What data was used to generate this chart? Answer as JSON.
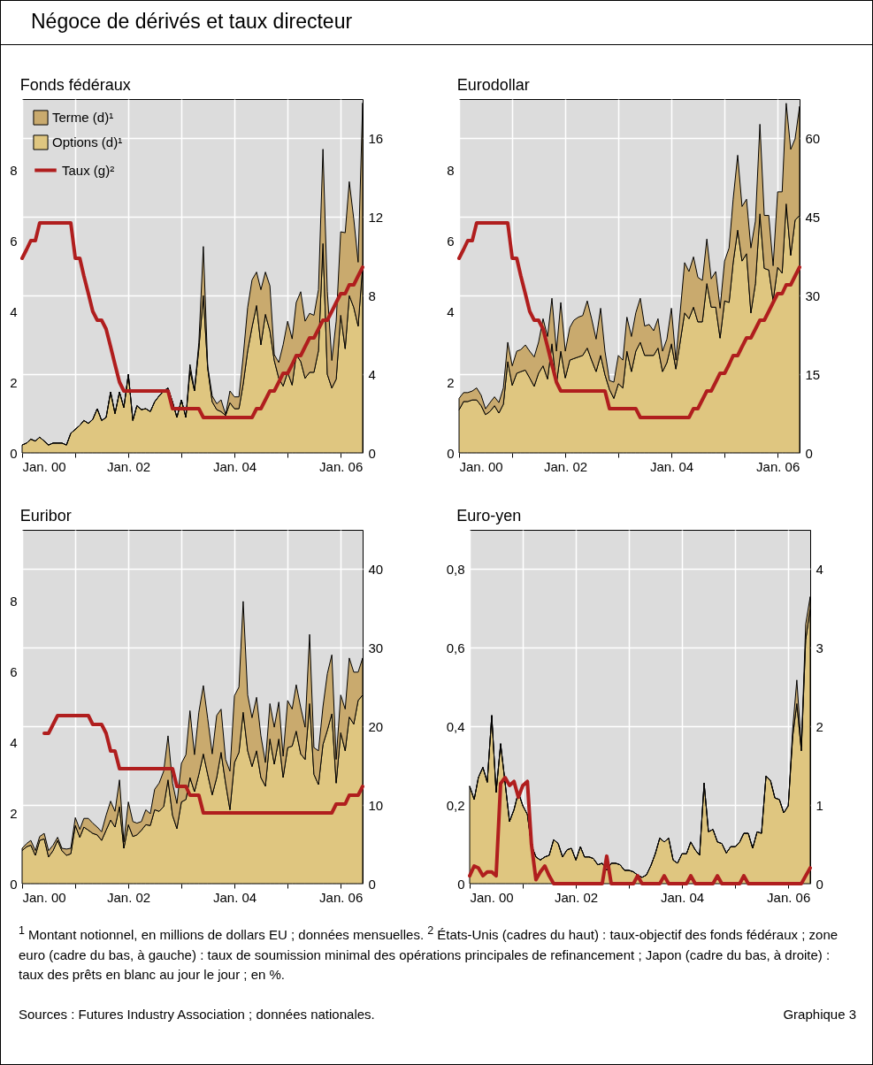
{
  "chart_data": [
    {
      "type": "area",
      "title": "Fonds fédéraux",
      "annotations": [
        "Négoce de dérivés et taux directeur"
      ],
      "stacked": true,
      "legend": "top left",
      "grid": true,
      "xlim": [
        "2000-01",
        "2006-06"
      ],
      "xticks": [
        {
          "value": "2000-01",
          "label": "Jan. 00"
        },
        {
          "value": "2001-01",
          "label": null
        },
        {
          "value": "2002-01",
          "label": "Jan. 02"
        },
        {
          "value": "2003-01",
          "label": null
        },
        {
          "value": "2004-01",
          "label": "Jan. 04"
        },
        {
          "value": "2005-01",
          "label": null
        },
        {
          "value": "2006-01",
          "label": "Jan. 06"
        }
      ],
      "ylim": [
        0,
        10
      ],
      "yticks": [
        0,
        2,
        4,
        6,
        8
      ],
      "y2lim": [
        0,
        18
      ],
      "y2ticks": [
        0,
        4,
        8,
        12,
        16
      ],
      "x": [
        "2000-01",
        "2000-02",
        "2000-03",
        "2000-04",
        "2000-05",
        "2000-06",
        "2000-07",
        "2000-08",
        "2000-09",
        "2000-10",
        "2000-11",
        "2000-12",
        "2001-01",
        "2001-02",
        "2001-03",
        "2001-04",
        "2001-05",
        "2001-06",
        "2001-07",
        "2001-08",
        "2001-09",
        "2001-10",
        "2001-11",
        "2001-12",
        "2002-01",
        "2002-02",
        "2002-03",
        "2002-04",
        "2002-05",
        "2002-06",
        "2002-07",
        "2002-08",
        "2002-09",
        "2002-10",
        "2002-11",
        "2002-12",
        "2003-01",
        "2003-02",
        "2003-03",
        "2003-04",
        "2003-05",
        "2003-06",
        "2003-07",
        "2003-08",
        "2003-09",
        "2003-10",
        "2003-11",
        "2003-12",
        "2004-01",
        "2004-02",
        "2004-03",
        "2004-04",
        "2004-05",
        "2004-06",
        "2004-07",
        "2004-08",
        "2004-09",
        "2004-10",
        "2004-11",
        "2004-12",
        "2005-01",
        "2005-02",
        "2005-03",
        "2005-04",
        "2005-05",
        "2005-06",
        "2005-07",
        "2005-08",
        "2005-09",
        "2005-10",
        "2005-11",
        "2005-12",
        "2006-01",
        "2006-02",
        "2006-03",
        "2006-04",
        "2006-05",
        "2006-06"
      ],
      "series": [
        {
          "name": "Options (d)¹",
          "color": "#dfc680",
          "axis": "y2",
          "values": [
            0.4,
            0.5,
            0.7,
            0.6,
            0.8,
            0.6,
            0.4,
            0.5,
            0.5,
            0.5,
            0.4,
            1.0,
            1.2,
            1.4,
            1.65,
            1.5,
            1.7,
            2.25,
            1.65,
            1.8,
            3.1,
            2.0,
            3.1,
            2.3,
            4.0,
            1.65,
            2.4,
            2.2,
            2.25,
            2.1,
            2.6,
            2.9,
            3.15,
            3.3,
            2.6,
            1.8,
            2.7,
            1.8,
            4.2,
            3.15,
            5.3,
            8.0,
            4.3,
            2.6,
            2.2,
            2.1,
            1.9,
            2.55,
            2.25,
            2.25,
            3.5,
            5.2,
            6.4,
            7.5,
            5.5,
            7.05,
            6.2,
            4.7,
            3.8,
            3.4,
            4.1,
            3.45,
            5.0,
            4.65,
            3.8,
            4.1,
            4.1,
            5.2,
            10.65,
            4.0,
            3.3,
            3.75,
            7.0,
            5.3,
            8.0,
            7.4,
            6.45,
            9.5
          ]
        },
        {
          "name": "Terme (d)¹",
          "color": "#c9aa6e",
          "axis": "y2",
          "values": [
            0,
            0,
            0,
            0,
            0,
            0,
            0,
            0,
            0,
            0,
            0,
            0,
            0,
            0,
            0,
            0,
            0,
            0,
            0,
            0,
            0,
            0,
            0,
            0,
            0,
            0,
            0,
            0,
            0,
            0,
            0,
            0,
            0,
            0,
            0,
            0,
            0,
            0,
            0.3,
            0.05,
            0.3,
            2.5,
            0.1,
            0.3,
            0.3,
            0.6,
            0.05,
            0.6,
            0.6,
            0.6,
            1.4,
            2.2,
            2.4,
            1.7,
            2.8,
            2.15,
            2.3,
            0.3,
            0.8,
            2.1,
            2.6,
            2.35,
            2.65,
            3.55,
            2.9,
            3.0,
            2.9,
            3.1,
            4.8,
            4.2,
            1.4,
            2.95,
            4.25,
            5.9,
            5.8,
            4.5,
            3.25,
            8.3
          ]
        },
        {
          "name": "Taux (g)²",
          "type": "line",
          "color": "#b01e1e",
          "x": [
            "2000-01",
            "2000-02",
            "2000-03",
            "2000-04",
            "2000-05",
            "2000-12",
            "2001-01",
            "2001-02",
            "2001-03",
            "2001-04",
            "2001-05",
            "2001-06",
            "2001-07",
            "2001-08",
            "2001-09",
            "2001-10",
            "2001-11",
            "2001-12",
            "2002-10",
            "2002-11",
            "2003-05",
            "2003-06",
            "2004-05",
            "2004-06",
            "2004-07",
            "2004-08",
            "2004-09",
            "2004-10",
            "2004-11",
            "2004-12",
            "2005-01",
            "2005-02",
            "2005-03",
            "2005-04",
            "2005-05",
            "2005-06",
            "2005-07",
            "2005-08",
            "2005-09",
            "2005-10",
            "2005-11",
            "2005-12",
            "2006-01",
            "2006-02",
            "2006-03",
            "2006-04",
            "2006-05",
            "2006-06"
          ],
          "values": [
            5.5,
            5.75,
            6.0,
            6.0,
            6.5,
            6.5,
            5.5,
            5.5,
            5.0,
            4.5,
            4.0,
            3.75,
            3.75,
            3.5,
            3.0,
            2.5,
            2.0,
            1.75,
            1.75,
            1.25,
            1.25,
            1.0,
            1.0,
            1.25,
            1.25,
            1.5,
            1.75,
            1.75,
            2.0,
            2.25,
            2.25,
            2.5,
            2.75,
            2.75,
            3.0,
            3.25,
            3.25,
            3.5,
            3.75,
            3.75,
            4.0,
            4.25,
            4.5,
            4.5,
            4.75,
            4.75,
            5.0,
            5.25
          ]
        }
      ]
    },
    {
      "type": "area",
      "title": "Eurodollar",
      "stacked": true,
      "grid": true,
      "xlim": [
        "2000-01",
        "2006-06"
      ],
      "xticks": [
        {
          "value": "2000-01",
          "label": "Jan. 00"
        },
        {
          "value": "2001-01",
          "label": null
        },
        {
          "value": "2002-01",
          "label": "Jan. 02"
        },
        {
          "value": "2003-01",
          "label": null
        },
        {
          "value": "2004-01",
          "label": "Jan. 04"
        },
        {
          "value": "2005-01",
          "label": null
        },
        {
          "value": "2006-01",
          "label": "Jan. 06"
        }
      ],
      "ylim": [
        0,
        10
      ],
      "yticks": [
        0,
        2,
        4,
        6,
        8
      ],
      "y2lim": [
        0,
        67.5
      ],
      "y2ticks": [
        0,
        15,
        30,
        45,
        60
      ],
      "x": [
        "2000-01",
        "2000-02",
        "2000-03",
        "2000-04",
        "2000-05",
        "2000-06",
        "2000-07",
        "2000-08",
        "2000-09",
        "2000-10",
        "2000-11",
        "2000-12",
        "2001-01",
        "2001-02",
        "2001-03",
        "2001-04",
        "2001-05",
        "2001-06",
        "2001-07",
        "2001-08",
        "2001-09",
        "2001-10",
        "2001-11",
        "2001-12",
        "2002-01",
        "2002-02",
        "2002-03",
        "2002-04",
        "2002-05",
        "2002-06",
        "2002-07",
        "2002-08",
        "2002-09",
        "2002-10",
        "2002-11",
        "2002-12",
        "2003-01",
        "2003-02",
        "2003-03",
        "2003-04",
        "2003-05",
        "2003-06",
        "2003-07",
        "2003-08",
        "2003-09",
        "2003-10",
        "2003-11",
        "2003-12",
        "2004-01",
        "2004-02",
        "2004-03",
        "2004-04",
        "2004-05",
        "2004-06",
        "2004-07",
        "2004-08",
        "2004-09",
        "2004-10",
        "2004-11",
        "2004-12",
        "2005-01",
        "2005-02",
        "2005-03",
        "2005-04",
        "2005-05",
        "2005-06",
        "2005-07",
        "2005-08",
        "2005-09",
        "2005-10",
        "2005-11",
        "2005-12",
        "2006-01",
        "2006-02",
        "2006-03",
        "2006-04",
        "2006-05",
        "2006-06"
      ],
      "series": [
        {
          "color": "#dfc680",
          "axis": "y2",
          "values": [
            8.2,
            9.8,
            9.8,
            10.1,
            10.1,
            9.0,
            7.3,
            7.9,
            9.0,
            7.6,
            9.3,
            17.4,
            12.9,
            15.2,
            15.5,
            15.8,
            14.3,
            12.7,
            15.2,
            16.6,
            14.1,
            20.8,
            13.2,
            19.4,
            14.3,
            17.7,
            18.0,
            18.3,
            18.6,
            20.0,
            17.7,
            15.5,
            18.6,
            14.9,
            12.1,
            10.4,
            13.2,
            12.4,
            19.4,
            15.5,
            19.4,
            21.1,
            18.6,
            18.6,
            18.6,
            20.0,
            15.5,
            17.2,
            20.8,
            16.0,
            21.1,
            26.7,
            25.6,
            27.8,
            25.0,
            25.0,
            32.3,
            27.8,
            27.8,
            21.9,
            29.0,
            28.7,
            36.3,
            42.5,
            36.6,
            38.0,
            26.7,
            32.3,
            45.6,
            35.2,
            34.9,
            29.0,
            35.4,
            34.3,
            47.5,
            37.7,
            44.4,
            45.3
          ]
        },
        {
          "color": "#c9aa6e",
          "axis": "y2",
          "values": [
            2.2,
            1.7,
            1.7,
            1.7,
            2.3,
            2.0,
            1.1,
            1.7,
            1.7,
            2.0,
            3.1,
            3.7,
            3.7,
            4.2,
            4.2,
            4.8,
            5.1,
            5.6,
            5.9,
            9.0,
            8.1,
            8.7,
            6.2,
            9.3,
            5.1,
            6.2,
            7.3,
            7.6,
            7.6,
            9.0,
            7.9,
            6.2,
            9.0,
            4.5,
            1.7,
            3.1,
            5.4,
            5.3,
            6.5,
            6.7,
            7.3,
            8.4,
            5.6,
            5.9,
            4.7,
            5.6,
            3.9,
            4.5,
            6.8,
            1.7,
            5.6,
            9.6,
            9.0,
            9.6,
            8.5,
            7.9,
            8.5,
            5.4,
            6.8,
            5.7,
            7.6,
            10.4,
            12.1,
            14.3,
            10.4,
            10.4,
            12.4,
            11.9,
            17.1,
            10.1,
            10.4,
            6.7,
            14.4,
            15.5,
            19.2,
            20.2,
            15.5,
            20.8
          ]
        },
        {
          "type": "line",
          "color": "#b01e1e",
          "x": [
            "2000-01",
            "2000-02",
            "2000-03",
            "2000-04",
            "2000-05",
            "2000-12",
            "2001-01",
            "2001-02",
            "2001-03",
            "2001-04",
            "2001-05",
            "2001-06",
            "2001-07",
            "2001-08",
            "2001-09",
            "2001-10",
            "2001-11",
            "2001-12",
            "2002-10",
            "2002-11",
            "2003-05",
            "2003-06",
            "2004-05",
            "2004-06",
            "2004-07",
            "2004-08",
            "2004-09",
            "2004-10",
            "2004-11",
            "2004-12",
            "2005-01",
            "2005-02",
            "2005-03",
            "2005-04",
            "2005-05",
            "2005-06",
            "2005-07",
            "2005-08",
            "2005-09",
            "2005-10",
            "2005-11",
            "2005-12",
            "2006-01",
            "2006-02",
            "2006-03",
            "2006-04",
            "2006-05",
            "2006-06"
          ],
          "values": [
            5.5,
            5.75,
            6.0,
            6.0,
            6.5,
            6.5,
            5.5,
            5.5,
            5.0,
            4.5,
            4.0,
            3.75,
            3.75,
            3.5,
            3.0,
            2.5,
            2.0,
            1.75,
            1.75,
            1.25,
            1.25,
            1.0,
            1.0,
            1.25,
            1.25,
            1.5,
            1.75,
            1.75,
            2.0,
            2.25,
            2.25,
            2.5,
            2.75,
            2.75,
            3.0,
            3.25,
            3.25,
            3.5,
            3.75,
            3.75,
            4.0,
            4.25,
            4.5,
            4.5,
            4.75,
            4.75,
            5.0,
            5.25
          ]
        }
      ]
    },
    {
      "type": "area",
      "title": "Euribor",
      "stacked": true,
      "grid": true,
      "xlim": [
        "2000-01",
        "2006-06"
      ],
      "xticks": [
        {
          "value": "2000-01",
          "label": "Jan. 00"
        },
        {
          "value": "2001-01",
          "label": null
        },
        {
          "value": "2002-01",
          "label": "Jan. 02"
        },
        {
          "value": "2003-01",
          "label": null
        },
        {
          "value": "2004-01",
          "label": "Jan. 04"
        },
        {
          "value": "2005-01",
          "label": null
        },
        {
          "value": "2006-01",
          "label": "Jan. 06"
        }
      ],
      "ylim": [
        0,
        10
      ],
      "yticks": [
        0,
        2,
        4,
        6,
        8
      ],
      "y2lim": [
        0,
        45
      ],
      "y2ticks": [
        0,
        10,
        20,
        30,
        40
      ],
      "x": [
        "2000-01",
        "2000-02",
        "2000-03",
        "2000-04",
        "2000-05",
        "2000-06",
        "2000-07",
        "2000-08",
        "2000-09",
        "2000-10",
        "2000-11",
        "2000-12",
        "2001-01",
        "2001-02",
        "2001-03",
        "2001-04",
        "2001-05",
        "2001-06",
        "2001-07",
        "2001-08",
        "2001-09",
        "2001-10",
        "2001-11",
        "2001-12",
        "2002-01",
        "2002-02",
        "2002-03",
        "2002-04",
        "2002-05",
        "2002-06",
        "2002-07",
        "2002-08",
        "2002-09",
        "2002-10",
        "2002-11",
        "2002-12",
        "2003-01",
        "2003-02",
        "2003-03",
        "2003-04",
        "2003-05",
        "2003-06",
        "2003-07",
        "2003-08",
        "2003-09",
        "2003-10",
        "2003-11",
        "2003-12",
        "2004-01",
        "2004-02",
        "2004-03",
        "2004-04",
        "2004-05",
        "2004-06",
        "2004-07",
        "2004-08",
        "2004-09",
        "2004-10",
        "2004-11",
        "2004-12",
        "2005-01",
        "2005-02",
        "2005-03",
        "2005-04",
        "2005-05",
        "2005-06",
        "2005-07",
        "2005-08",
        "2005-09",
        "2005-10",
        "2005-11",
        "2005-12",
        "2006-01",
        "2006-02",
        "2006-03",
        "2006-04",
        "2006-05",
        "2006-06"
      ],
      "series": [
        {
          "color": "#dfc680",
          "axis": "y2",
          "values": [
            4.2,
            4.7,
            4.9,
            3.6,
            5.5,
            5.7,
            3.4,
            4.2,
            5.5,
            4.2,
            3.6,
            3.8,
            7.4,
            5.9,
            7.2,
            6.8,
            6.4,
            6.2,
            5.5,
            6.8,
            8.1,
            7.2,
            9.8,
            4.5,
            7.5,
            6.0,
            6.2,
            6.8,
            7.5,
            7.4,
            9.4,
            9.2,
            9.8,
            13.2,
            8.7,
            7.0,
            10.4,
            10.7,
            13.5,
            11.7,
            13.9,
            16.5,
            13.9,
            11.3,
            13.5,
            16.7,
            12.8,
            9.4,
            15.4,
            16.7,
            21.8,
            16.9,
            14.9,
            16.9,
            13.5,
            12.4,
            18.4,
            15.2,
            18.4,
            13.5,
            17.3,
            17.5,
            19.4,
            16.5,
            15.8,
            22.9,
            13.9,
            12.6,
            17.7,
            19.5,
            21.6,
            12.8,
            19.2,
            16.9,
            21.2,
            20.3,
            23.3,
            24.0
          ]
        },
        {
          "color": "#c9aa6e",
          "axis": "y2",
          "values": [
            0.3,
            0.4,
            0.6,
            0.6,
            0.5,
            0.7,
            0.8,
            0.7,
            0.4,
            0.3,
            0.8,
            0.7,
            1.0,
            1.0,
            1.1,
            1.5,
            1.3,
            1.0,
            1.1,
            1.9,
            2.4,
            2.0,
            3.4,
            0.8,
            2.9,
            1.9,
            1.5,
            1.1,
            1.9,
            1.5,
            2.6,
            3.6,
            4.5,
            5.6,
            4.1,
            3.2,
            4.9,
            5.7,
            8.5,
            4.7,
            7.9,
            8.7,
            7.1,
            5.2,
            7.9,
            5.5,
            3.0,
            4.9,
            8.5,
            8.3,
            14.1,
            7.1,
            6.2,
            6.8,
            5.3,
            3.0,
            4.5,
            4.7,
            4.7,
            2.7,
            6.0,
            4.7,
            5.9,
            5.9,
            4.1,
            8.8,
            3.4,
            4.3,
            4.8,
            7.2,
            7.5,
            3.0,
            4.8,
            5.3,
            7.5,
            6.6,
            3.6,
            4.7
          ]
        },
        {
          "type": "line",
          "color": "#b01e1e",
          "x": [
            "2000-06",
            "2000-07",
            "2000-08",
            "2000-09",
            "2001-04",
            "2001-05",
            "2001-07",
            "2001-08",
            "2001-09",
            "2001-10",
            "2001-11",
            "2002-11",
            "2002-12",
            "2003-02",
            "2003-03",
            "2003-05",
            "2003-06",
            "2005-11",
            "2005-12",
            "2006-02",
            "2006-03",
            "2006-05",
            "2006-06"
          ],
          "values": [
            4.25,
            4.25,
            4.5,
            4.75,
            4.75,
            4.5,
            4.5,
            4.25,
            3.75,
            3.75,
            3.25,
            3.25,
            2.75,
            2.75,
            2.5,
            2.5,
            2.0,
            2.0,
            2.25,
            2.25,
            2.5,
            2.5,
            2.75
          ]
        }
      ]
    },
    {
      "type": "area",
      "title": "Euro-yen",
      "stacked": true,
      "grid": true,
      "annotations": [
        "$^{1}$ Montant notionnel, en millions de dollars EU ; données mensuelles.  $^{2}$ États-Unis (cadres du haut) : taux-objectif des fonds fédéraux ; zone euro (cadre du bas, à gauche) : taux de soumission minimal des opérations principales de refinancement ; Japon (cadre du bas, à droite) : taux des prêts en blanc au jour le jour ; en %.",
        "Sources : Futures Industry Association ; données nationales.",
        "Graphique 3"
      ],
      "xlim": [
        "2000-01",
        "2006-06"
      ],
      "xticks": [
        {
          "value": "2000-01",
          "label": "Jan. 00"
        },
        {
          "value": "2001-01",
          "label": null
        },
        {
          "value": "2002-01",
          "label": "Jan. 02"
        },
        {
          "value": "2003-01",
          "label": null
        },
        {
          "value": "2004-01",
          "label": "Jan. 04"
        },
        {
          "value": "2005-01",
          "label": null
        },
        {
          "value": "2006-01",
          "label": "Jan. 06"
        }
      ],
      "ylim": [
        0,
        0.9
      ],
      "yticks": [
        0,
        {
          "value": 0.2,
          "label": "0,2"
        },
        {
          "value": 0.4,
          "label": "0,4"
        },
        {
          "value": 0.6,
          "label": "0,6"
        },
        {
          "value": 0.8,
          "label": "0,8"
        }
      ],
      "y2lim": [
        0,
        4.5
      ],
      "y2ticks": [
        0,
        1,
        2,
        3,
        4
      ],
      "x": [
        "2000-01",
        "2000-02",
        "2000-03",
        "2000-04",
        "2000-05",
        "2000-06",
        "2000-07",
        "2000-08",
        "2000-09",
        "2000-10",
        "2000-11",
        "2000-12",
        "2001-01",
        "2001-02",
        "2001-03",
        "2001-04",
        "2001-05",
        "2001-06",
        "2001-07",
        "2001-08",
        "2001-09",
        "2001-10",
        "2001-11",
        "2001-12",
        "2002-01",
        "2002-02",
        "2002-03",
        "2002-04",
        "2002-05",
        "2002-06",
        "2002-07",
        "2002-08",
        "2002-09",
        "2002-10",
        "2002-11",
        "2002-12",
        "2003-01",
        "2003-02",
        "2003-03",
        "2003-04",
        "2003-05",
        "2003-06",
        "2003-07",
        "2003-08",
        "2003-09",
        "2003-10",
        "2003-11",
        "2003-12",
        "2004-01",
        "2004-02",
        "2004-03",
        "2004-04",
        "2004-05",
        "2004-06",
        "2004-07",
        "2004-08",
        "2004-09",
        "2004-10",
        "2004-11",
        "2004-12",
        "2005-01",
        "2005-02",
        "2005-03",
        "2005-04",
        "2005-05",
        "2005-06",
        "2005-07",
        "2005-08",
        "2005-09",
        "2005-10",
        "2005-11",
        "2005-12",
        "2006-01",
        "2006-02",
        "2006-03",
        "2006-04",
        "2006-05",
        "2006-06"
      ],
      "series": [
        {
          "color": "#dfc680",
          "axis": "y2",
          "values": [
            1.24,
            1.07,
            1.35,
            1.48,
            1.29,
            2.14,
            1.16,
            1.78,
            1.28,
            0.79,
            0.94,
            1.16,
            0.99,
            0.88,
            0.49,
            0.34,
            0.3,
            0.34,
            0.36,
            0.56,
            0.51,
            0.34,
            0.43,
            0.45,
            0.3,
            0.47,
            0.34,
            0.34,
            0.32,
            0.24,
            0.26,
            0.17,
            0.26,
            0.26,
            0.24,
            0.17,
            0.17,
            0.15,
            0.11,
            0.08,
            0.11,
            0.23,
            0.38,
            0.58,
            0.53,
            0.58,
            0.3,
            0.26,
            0.38,
            0.38,
            0.53,
            0.43,
            0.36,
            1.28,
            0.66,
            0.69,
            0.53,
            0.51,
            0.39,
            0.47,
            0.47,
            0.53,
            0.64,
            0.64,
            0.45,
            0.66,
            0.64,
            1.37,
            1.31,
            1.09,
            1.07,
            0.9,
            0.99,
            1.88,
            2.29,
            1.69,
            3.1,
            3.5
          ]
        },
        {
          "color": "#c9aa6e",
          "axis": "y2",
          "values": [
            0,
            0,
            0,
            0,
            0,
            0,
            0,
            0,
            0,
            0,
            0,
            0,
            0,
            0,
            0,
            0,
            0,
            0,
            0,
            0,
            0,
            0,
            0,
            0,
            0,
            0,
            0,
            0,
            0,
            0,
            0,
            0,
            0,
            0,
            0,
            0,
            0,
            0,
            0,
            0,
            0,
            0,
            0,
            0,
            0,
            0,
            0,
            0,
            0,
            0,
            0,
            0,
            0,
            0,
            0,
            0,
            0,
            0,
            0,
            0,
            0,
            0,
            0,
            0,
            0,
            0,
            0,
            0,
            0,
            0,
            0,
            0,
            0,
            0.1,
            0.3,
            0.05,
            0.2,
            0.15
          ]
        },
        {
          "type": "line",
          "color": "#b01e1e",
          "x": [
            "2000-01",
            "2000-02",
            "2000-03",
            "2000-04",
            "2000-05",
            "2000-06",
            "2000-07",
            "2000-08",
            "2000-09",
            "2000-10",
            "2000-11",
            "2000-12",
            "2001-01",
            "2001-02",
            "2001-03",
            "2001-04",
            "2001-05",
            "2001-06",
            "2001-07",
            "2001-08",
            "2002-07",
            "2002-08",
            "2002-09",
            "2003-02",
            "2003-03",
            "2003-04",
            "2003-08",
            "2003-09",
            "2003-10",
            "2004-02",
            "2004-03",
            "2004-04",
            "2004-08",
            "2004-09",
            "2004-10",
            "2005-02",
            "2005-03",
            "2005-04",
            "2006-04",
            "2006-05",
            "2006-06"
          ],
          "values": [
            0.02,
            0.045,
            0.04,
            0.02,
            0.03,
            0.03,
            0.02,
            0.255,
            0.27,
            0.25,
            0.26,
            0.22,
            0.25,
            0.26,
            0.1,
            0.01,
            0.03,
            0.045,
            0.02,
            0,
            0,
            0.07,
            0,
            0,
            0.02,
            0,
            0,
            0.02,
            0,
            0,
            0.02,
            0,
            0,
            0.02,
            0,
            0,
            0.02,
            0,
            0,
            0.02,
            0.04
          ]
        }
      ]
    }
  ]
}
